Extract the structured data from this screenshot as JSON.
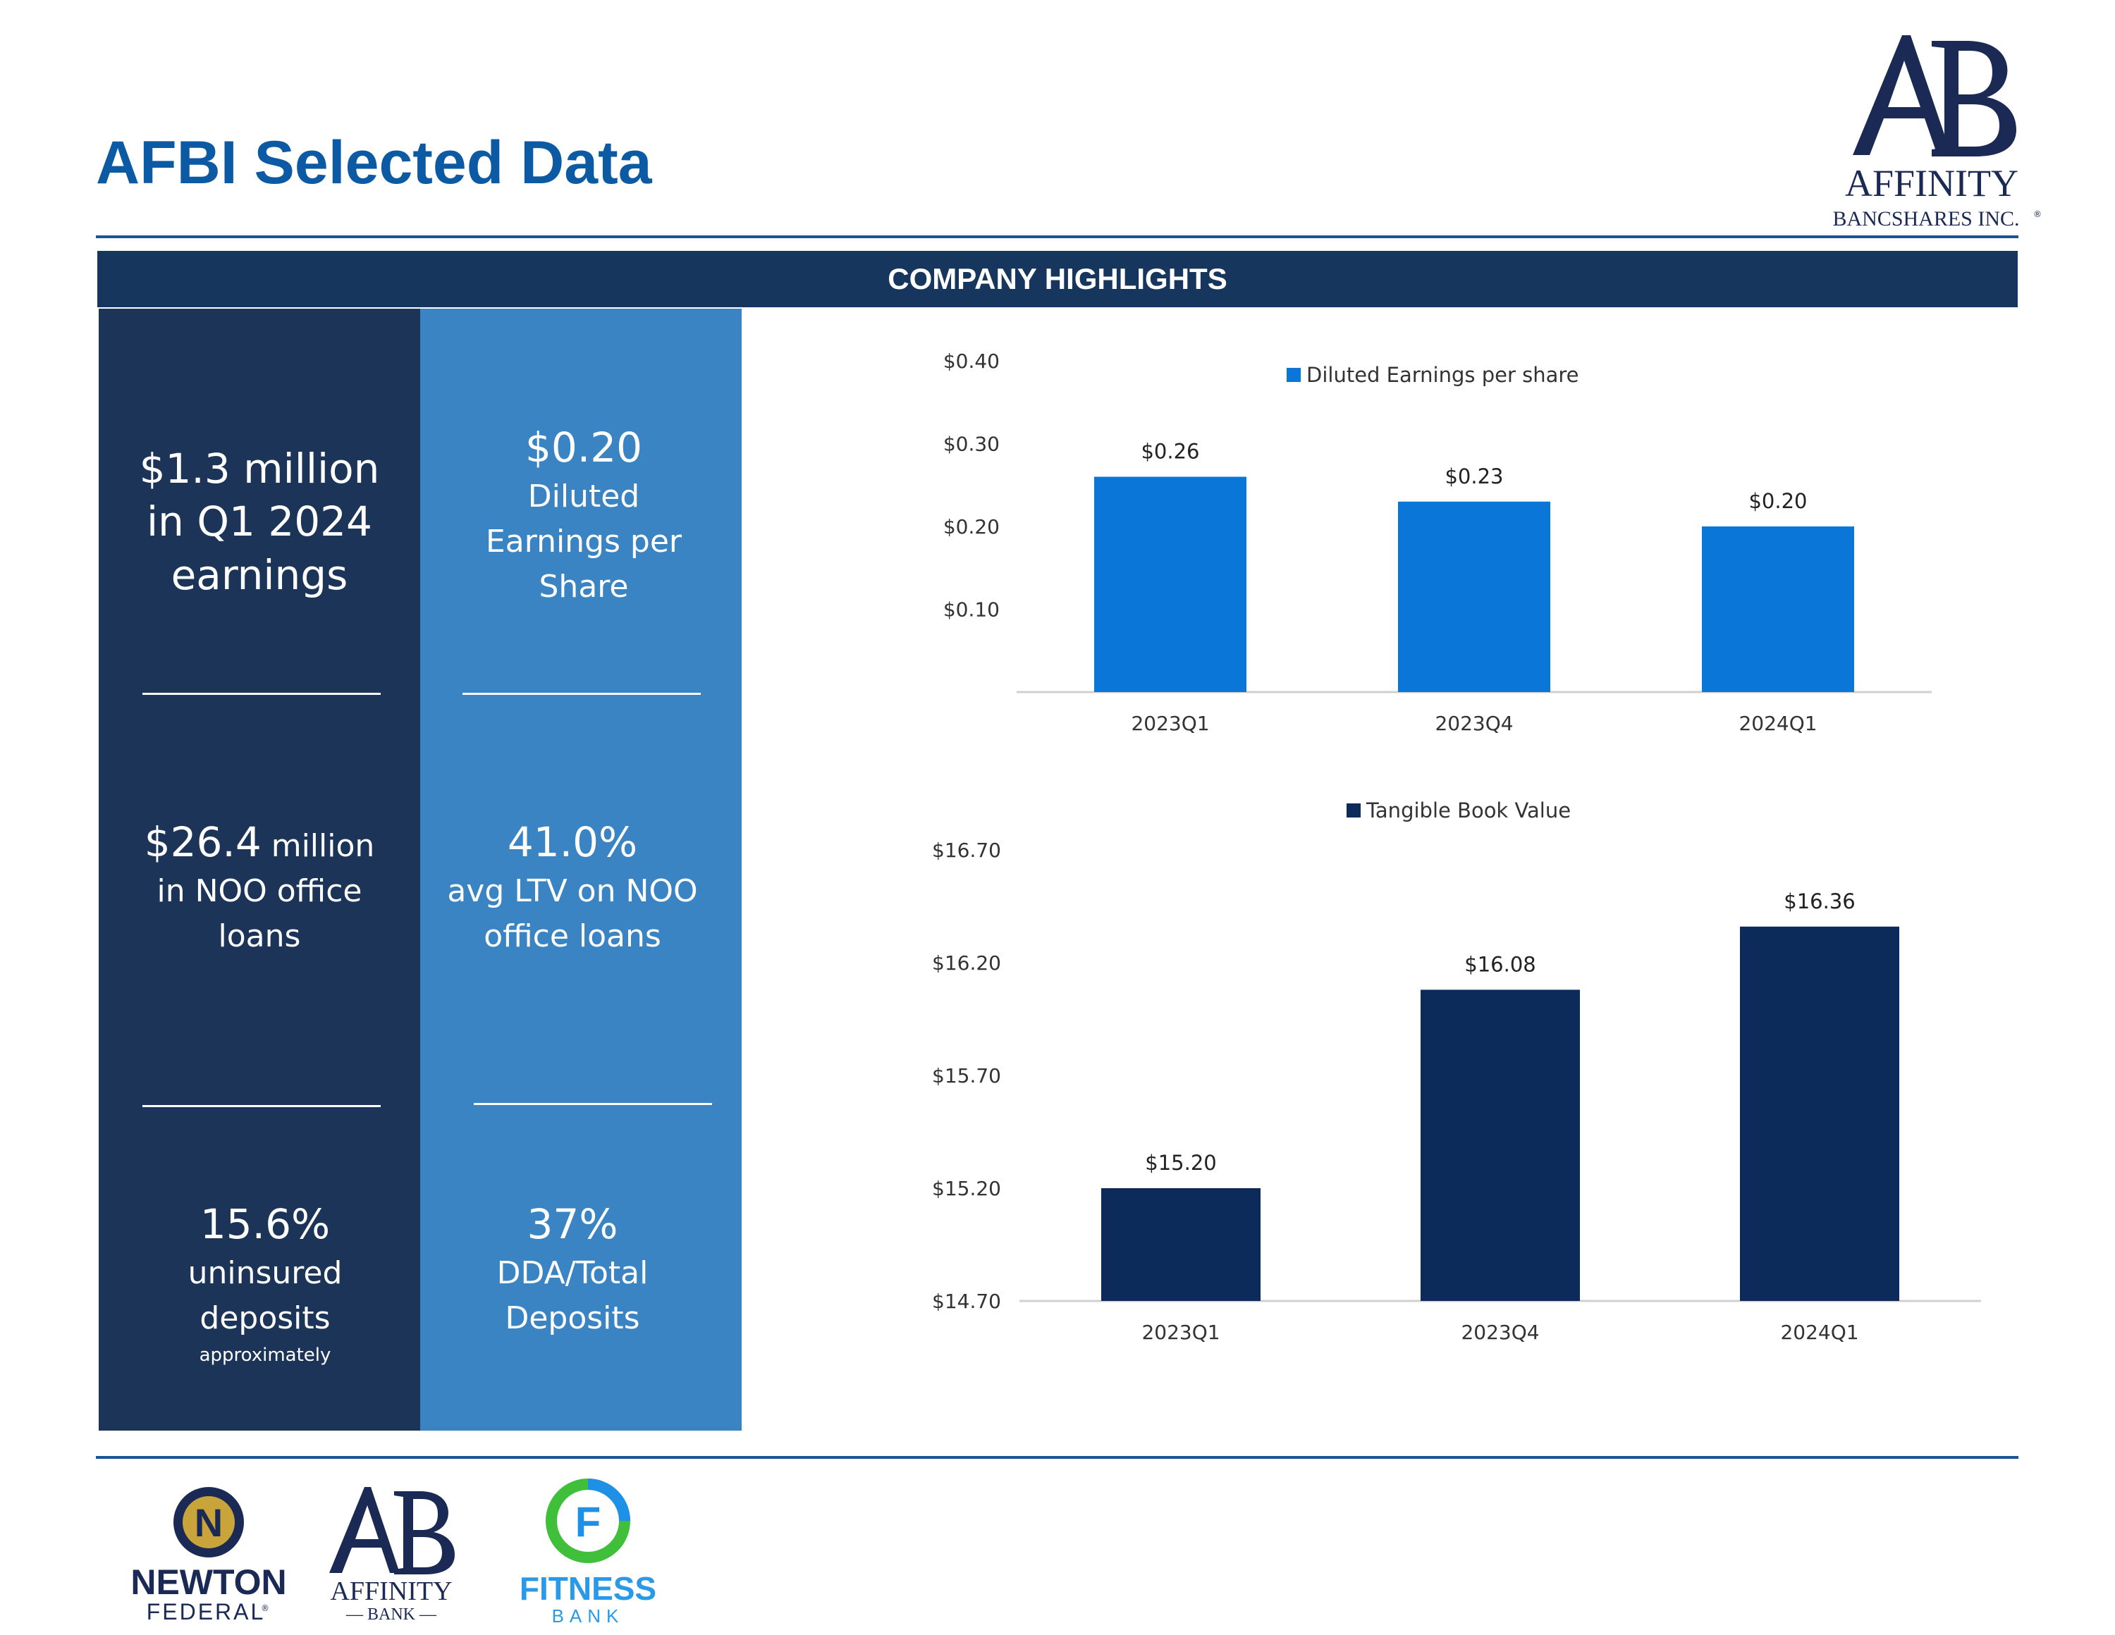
{
  "page": {
    "title": "AFBI Selected Data",
    "banner": "COMPANY HIGHLIGHTS"
  },
  "brand": {
    "name_line1": "AFFINITY",
    "name_line2": "BANCSHARES INC.",
    "mark": "AB",
    "trademark": "®"
  },
  "highlights": {
    "earnings": {
      "value": "$1.3 million",
      "line2": "in  Q1 2024",
      "line3": "earnings"
    },
    "diluted_eps": {
      "value": "$0.20",
      "line2": "Diluted",
      "line3": "Earnings per",
      "line4": "Share"
    },
    "noo_loans": {
      "value": "$26.4",
      "unit": " million",
      "line2": "in NOO office",
      "line3": "loans"
    },
    "avg_ltv": {
      "value": "41.0%",
      "line2": "avg LTV on NOO",
      "line3": "office loans"
    },
    "uninsured": {
      "value": "15.6%",
      "line2": "uninsured",
      "line3": "deposits",
      "note": "approximately"
    },
    "dda": {
      "value": "37%",
      "line2": "DDA/Total",
      "line3": "Deposits"
    }
  },
  "chart_data": [
    {
      "type": "bar",
      "categories": [
        "2023Q1",
        "2023Q4",
        "2024Q1"
      ],
      "series": [
        {
          "name": "Diluted Earnings per share",
          "values": [
            0.26,
            0.23,
            0.2
          ]
        }
      ],
      "data_labels": [
        "$0.26",
        "$0.23",
        "$0.20"
      ],
      "y_ticks": [
        "$0.10",
        "$0.20",
        "$0.30",
        "$0.40"
      ],
      "ylim": [
        0,
        0.4
      ],
      "color": "#0a76d8",
      "legend": "top"
    },
    {
      "type": "bar",
      "categories": [
        "2023Q1",
        "2023Q4",
        "2024Q1"
      ],
      "series": [
        {
          "name": "Tangible Book Value",
          "values": [
            15.2,
            16.08,
            16.36
          ]
        }
      ],
      "data_labels": [
        "$15.20",
        "$16.08",
        "$16.36"
      ],
      "y_ticks": [
        "$14.70",
        "$15.20",
        "$15.70",
        "$16.20",
        "$16.70"
      ],
      "ylim": [
        14.7,
        16.7
      ],
      "color": "#0d2b5a",
      "legend": "top"
    }
  ],
  "subsidiaries": {
    "newton": {
      "line1": "NEWTON",
      "line2": "FEDERAL",
      "mark": "N",
      "trademark": "®"
    },
    "affinity": {
      "mark": "AB",
      "line1": "AFFINITY",
      "line2": "— BANK —"
    },
    "fitness": {
      "mark": "F",
      "line1": "FITNESS",
      "line2": "BANK"
    }
  }
}
